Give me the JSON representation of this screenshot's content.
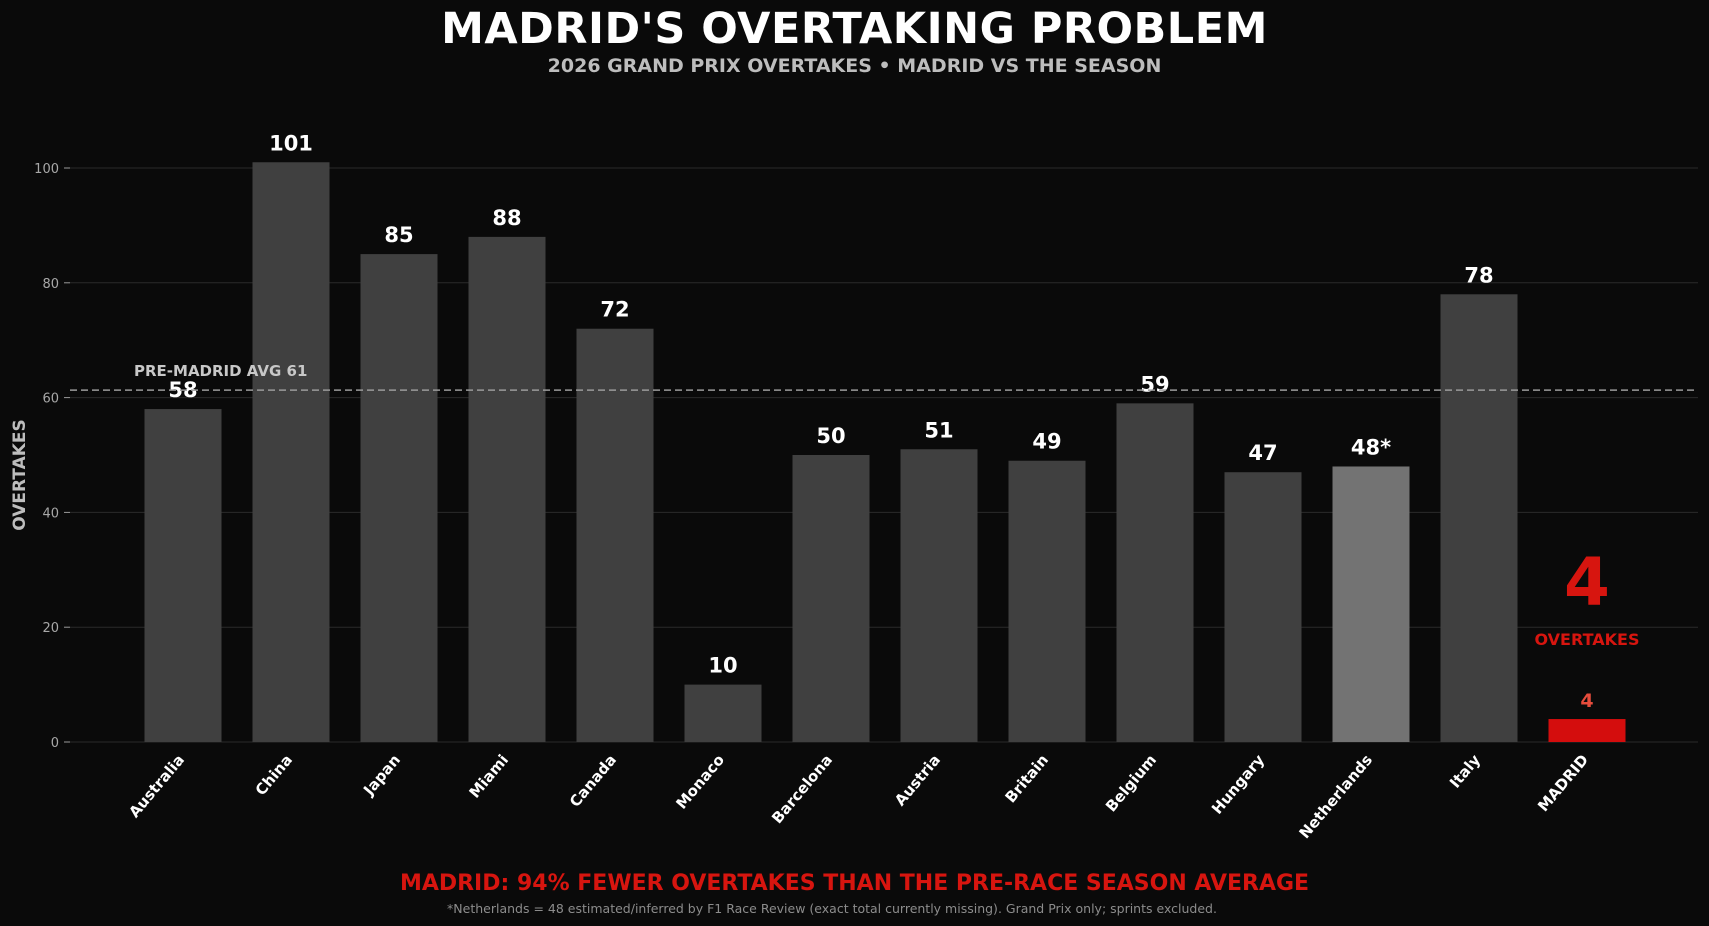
{
  "title": "MADRID'S OVERTAKING PROBLEM",
  "subtitle": "2026 GRAND PRIX OVERTAKES • MADRID VS THE SEASON",
  "colors": {
    "background": "#0a0a0a",
    "bar": "#404040",
    "bar_estimated": "#737373",
    "bar_highlight": "#d40d0d",
    "accent_red": "#d7150f",
    "label_red_light": "#e74c3c",
    "reference_line": "#9a9a9a",
    "grid": "#2a2a2a"
  },
  "chart_data": {
    "type": "bar",
    "categories": [
      "Australia",
      "China",
      "Japan",
      "Miami",
      "Canada",
      "Monaco",
      "Barcelona",
      "Austria",
      "Britain",
      "Belgium",
      "Hungary",
      "Netherlands",
      "Italy",
      "MADRID"
    ],
    "values": [
      58,
      101,
      85,
      88,
      72,
      10,
      50,
      51,
      49,
      59,
      47,
      48,
      78,
      4
    ],
    "value_labels": [
      "58",
      "101",
      "85",
      "88",
      "72",
      "10",
      "50",
      "51",
      "49",
      "59",
      "47",
      "48*",
      "78",
      "4"
    ],
    "estimated": [
      "Netherlands"
    ],
    "highlight": [
      "MADRID"
    ],
    "ylabel": "OVERTAKES",
    "xlabel": "",
    "ylim": [
      0,
      108
    ],
    "yticks": [
      0,
      20,
      40,
      60,
      80,
      100
    ],
    "grid": true,
    "reference_line": {
      "value": 61.3,
      "label": "PRE-MADRID AVG  61"
    },
    "annotation": {
      "big_value": "4",
      "big_label": "OVERTAKES"
    }
  },
  "callout": "MADRID: 94% FEWER OVERTAKES THAN THE PRE-RACE SEASON AVERAGE",
  "footnote": "*Netherlands = 48 estimated/inferred by F1 Race Review (exact total currently missing). Grand Prix only; sprints excluded."
}
